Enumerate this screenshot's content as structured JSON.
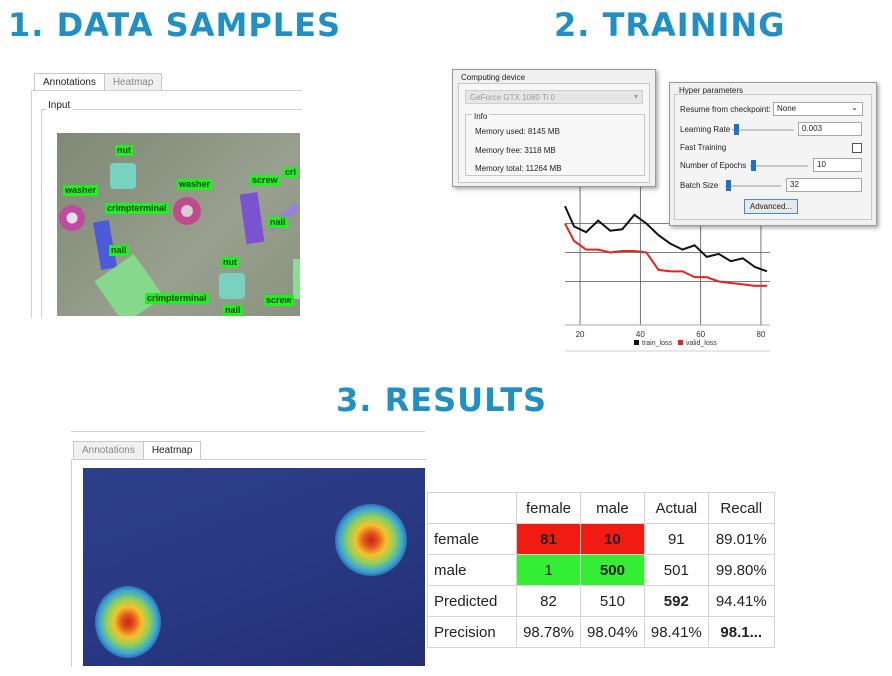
{
  "headings": {
    "data_samples": "1. DATA SAMPLES",
    "training": "2. TRAINING",
    "results": "3. RESULTS"
  },
  "samples_panel": {
    "tabs": [
      "Annotations",
      "Heatmap"
    ],
    "active_tab": "Annotations",
    "group_label": "Input",
    "annotations": [
      "nut",
      "washer",
      "washer",
      "crimpterminal",
      "screw",
      "cri",
      "nail",
      "nail",
      "nut",
      "crimpterminal",
      "nail",
      "screw"
    ]
  },
  "computing_device": {
    "title": "Computing device",
    "device": "GeForce GTX 1080 Ti 0",
    "info_title": "Info",
    "memory_used": "Memory used: 8145 MB",
    "memory_free": "Memory free: 3118 MB",
    "memory_total": "Memory total: 11264 MB"
  },
  "hyper_parameters": {
    "title": "Hyper parameters",
    "resume_label": "Resume from checkpoint:",
    "resume_value": "None",
    "learning_rate_label": "Learning Rate",
    "learning_rate_value": "0.003",
    "fast_training_label": "Fast Training",
    "fast_training_checked": false,
    "epochs_label": "Number of Epochs",
    "epochs_value": "10",
    "batch_size_label": "Batch Size",
    "batch_size_value": "32",
    "advanced_button": "Advanced..."
  },
  "chart_data": {
    "type": "line",
    "x_ticks": [
      "20",
      "40",
      "60",
      "80"
    ],
    "xlim": [
      15,
      83
    ],
    "ylim": [
      0,
      1
    ],
    "grid": true,
    "legend_position": "bottom",
    "series": [
      {
        "name": "train_loss",
        "color": "#111111",
        "x": [
          15,
          18,
          22,
          26,
          30,
          34,
          38,
          42,
          46,
          50,
          54,
          58,
          62,
          66,
          70,
          74,
          78,
          82
        ],
        "y": [
          0.82,
          0.68,
          0.64,
          0.72,
          0.65,
          0.66,
          0.76,
          0.7,
          0.62,
          0.56,
          0.52,
          0.55,
          0.47,
          0.49,
          0.44,
          0.46,
          0.4,
          0.37
        ]
      },
      {
        "name": "valid_loss",
        "color": "#e8221e",
        "x": [
          15,
          18,
          22,
          26,
          30,
          34,
          38,
          42,
          46,
          50,
          54,
          58,
          62,
          66,
          70,
          74,
          78,
          82
        ],
        "y": [
          0.7,
          0.58,
          0.52,
          0.52,
          0.5,
          0.51,
          0.51,
          0.5,
          0.38,
          0.37,
          0.37,
          0.33,
          0.33,
          0.3,
          0.29,
          0.28,
          0.27,
          0.27
        ]
      }
    ]
  },
  "results_panel": {
    "tabs": [
      "Annotations",
      "Heatmap"
    ],
    "active_tab": "Heatmap"
  },
  "confusion_table": {
    "header": [
      "",
      "female",
      "male",
      "Actual",
      "Recall"
    ],
    "rows": [
      [
        "female",
        "81",
        "10",
        "91",
        "89.01%"
      ],
      [
        "male",
        "1",
        "500",
        "501",
        "99.80%"
      ],
      [
        "Predicted",
        "82",
        "510",
        "592",
        "94.41%"
      ],
      [
        "Precision",
        "98.78%",
        "98.04%",
        "98.41%",
        "98.1..."
      ]
    ],
    "colors": {
      "error": "#f21b12",
      "correct": "#33ee33"
    }
  }
}
